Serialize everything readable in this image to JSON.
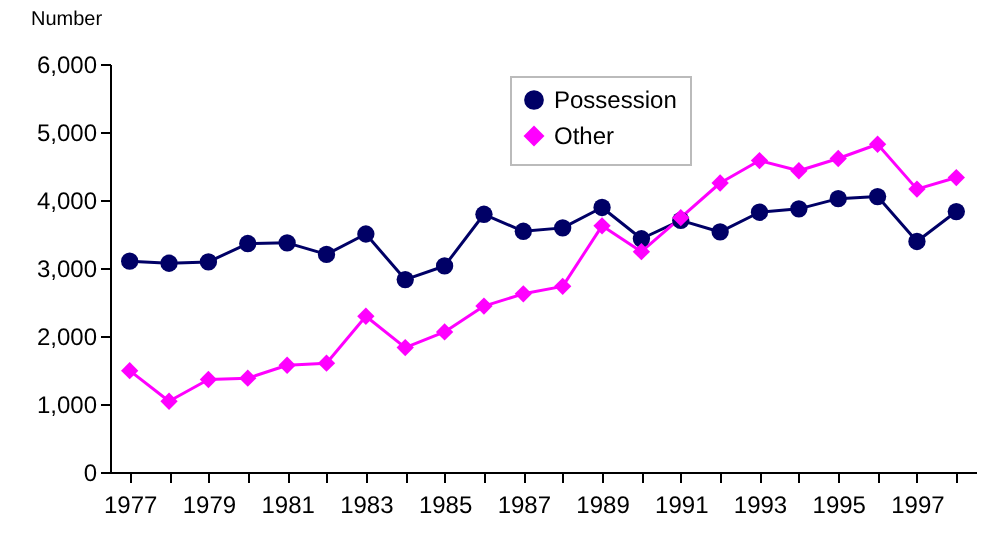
{
  "chart_data": {
    "type": "line",
    "ylabel": "Number",
    "categories": [
      "1977",
      null,
      "1979",
      null,
      "1981",
      null,
      "1983",
      null,
      "1985",
      null,
      "1987",
      null,
      "1989",
      null,
      "1991",
      null,
      "1993",
      null,
      "1995",
      null,
      "1997",
      null
    ],
    "series": [
      {
        "name": "Possession",
        "color": "#000066",
        "marker": "circle",
        "values": [
          3100,
          3070,
          3090,
          3360,
          3370,
          3200,
          3500,
          2830,
          3030,
          3790,
          3540,
          3590,
          3890,
          3430,
          3700,
          3530,
          3820,
          3870,
          4020,
          4050,
          3390,
          3830
        ]
      },
      {
        "name": "Other",
        "color": "#ff00ff",
        "marker": "diamond",
        "values": [
          1490,
          1040,
          1360,
          1380,
          1570,
          1600,
          2290,
          1830,
          2060,
          2440,
          2620,
          2730,
          3620,
          3240,
          3740,
          4250,
          4580,
          4430,
          4610,
          4820,
          4160,
          4330
        ]
      }
    ],
    "ylim": [
      0,
      6000
    ],
    "yticks": [
      0,
      {
        "value": 1000,
        "label": "1,000"
      },
      {
        "value": 2000,
        "label": "2,000"
      },
      {
        "value": 3000,
        "label": "3,000"
      },
      {
        "value": 4000,
        "label": "4,000"
      },
      {
        "value": 5000,
        "label": "5,000"
      },
      {
        "value": 6000,
        "label": "6,000"
      }
    ],
    "grid": false,
    "legend": "top"
  }
}
